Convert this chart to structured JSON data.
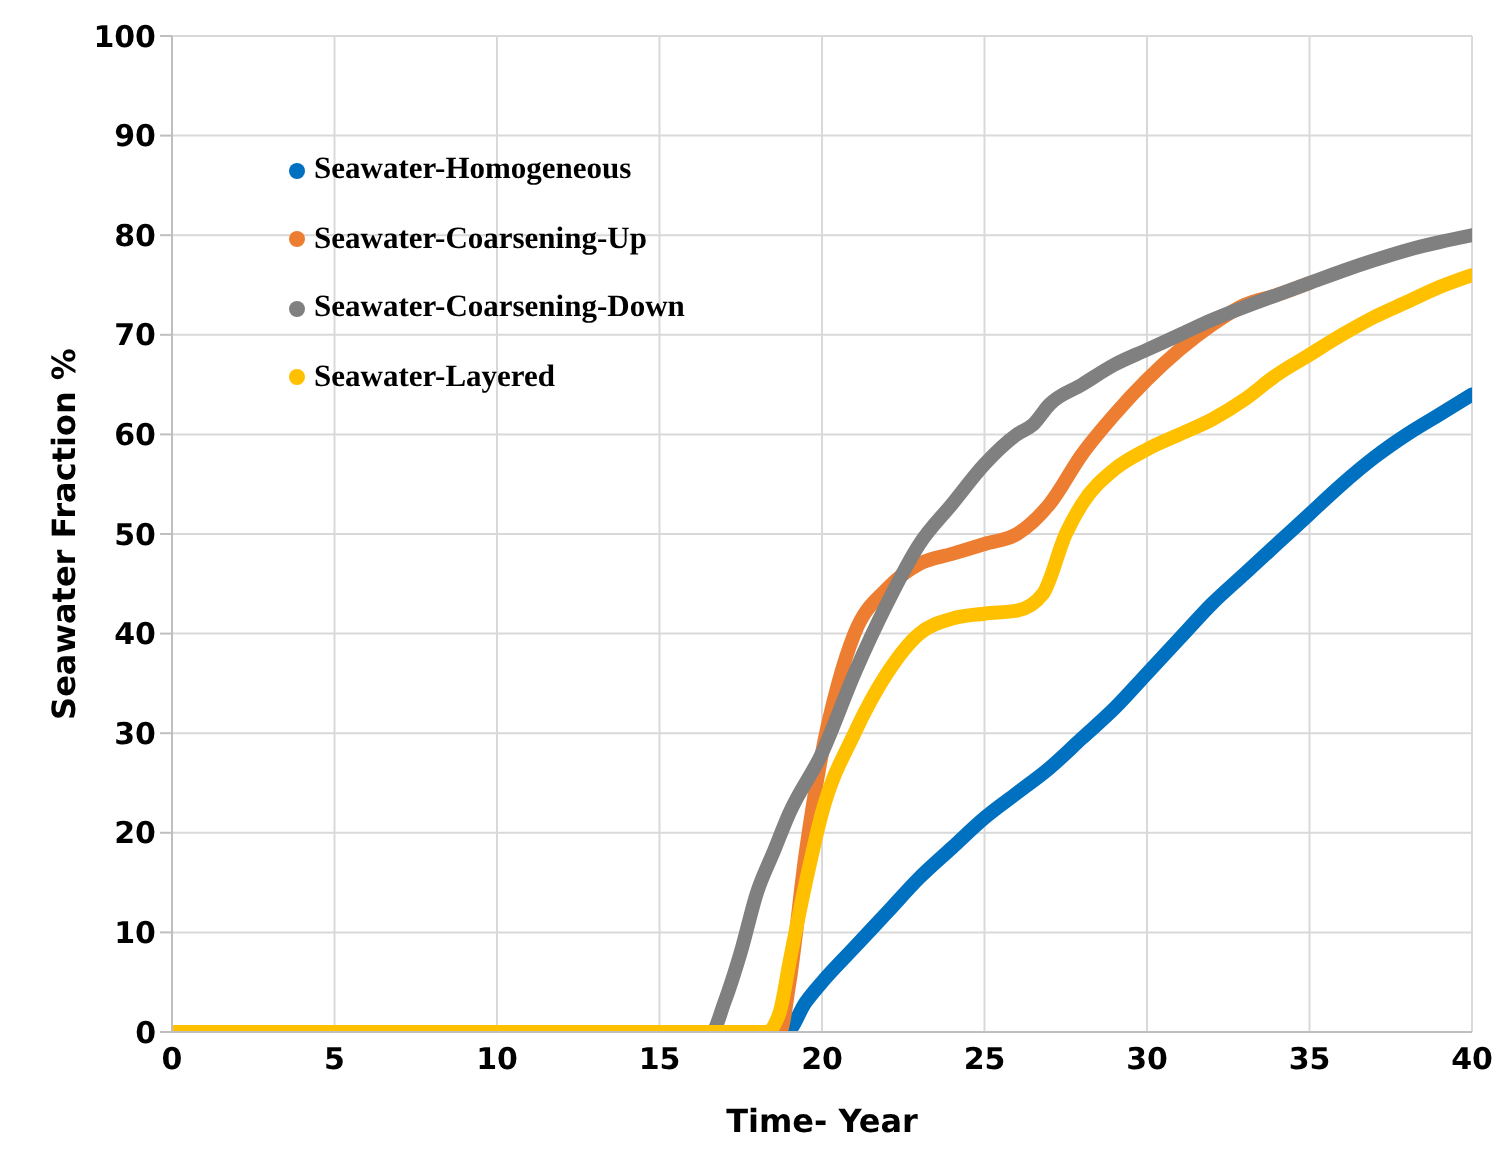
{
  "chart_data": {
    "type": "line",
    "xlabel": "Time- Year",
    "ylabel": "Seawater Fraction %",
    "xlim": [
      0,
      40
    ],
    "xticks": [
      0,
      5,
      10,
      15,
      20,
      25,
      30,
      35,
      40
    ],
    "ylim": [
      0,
      100
    ],
    "yticks": [
      0,
      10,
      20,
      30,
      40,
      50,
      60,
      70,
      80,
      90,
      100
    ],
    "grid": true,
    "legend": "top left",
    "marker": "none",
    "line_style": "solid",
    "series": [
      {
        "name": "Seawater-Homogeneous",
        "color": "#0070c0",
        "x": [
          0,
          18.9,
          19.5,
          20,
          21,
          22,
          23,
          24,
          25,
          26,
          27,
          28,
          29,
          30,
          31,
          32,
          33,
          34,
          35,
          36,
          37,
          38,
          39,
          40
        ],
        "values": [
          0,
          0,
          3,
          5,
          8.5,
          12,
          15.5,
          18.5,
          21.5,
          24,
          26.5,
          29.5,
          32.5,
          36,
          39.5,
          43,
          46,
          49,
          52,
          55,
          57.7,
          60,
          62,
          64
        ]
      },
      {
        "name": "Seawater-Coarsening-Up",
        "color": "#ed7d31",
        "x": [
          0,
          18.7,
          19,
          19.5,
          20,
          20.5,
          21,
          22,
          23,
          24,
          25,
          26,
          27,
          28,
          29,
          30,
          31,
          32,
          33,
          34,
          35
        ],
        "values": [
          0,
          0,
          5,
          18,
          28,
          35,
          40,
          44.5,
          47,
          48,
          49,
          50,
          53,
          58,
          62,
          65.5,
          68.5,
          71,
          73,
          74,
          75.2
        ]
      },
      {
        "name": "Seawater-Coarsening-Down",
        "color": "#808080",
        "x": [
          0,
          16.6,
          17,
          17.5,
          18,
          18.5,
          19,
          20,
          21,
          22,
          23,
          24,
          25,
          26,
          26.5,
          27,
          28,
          29,
          30,
          31,
          32,
          33,
          34,
          35,
          36,
          37,
          38,
          39,
          40
        ],
        "values": [
          0,
          0,
          3,
          8,
          14,
          18,
          22,
          28,
          36,
          43,
          49,
          53,
          57,
          60,
          61,
          63,
          65,
          67,
          68.5,
          70,
          71.5,
          72.8,
          74,
          75.2,
          76.4,
          77.5,
          78.5,
          79.3,
          80
        ]
      },
      {
        "name": "Seawater-Layered",
        "color": "#ffc000",
        "x": [
          0,
          18.3,
          18.7,
          19,
          19.5,
          20,
          21,
          22,
          23,
          24,
          25,
          26,
          26.8,
          27.5,
          28,
          29,
          30,
          31,
          32,
          33,
          34,
          35,
          36,
          37,
          38,
          39,
          40
        ],
        "values": [
          0,
          0,
          2,
          7,
          15,
          22,
          30,
          36,
          40,
          41.5,
          42,
          42.3,
          44,
          50,
          53,
          56.5,
          58.5,
          60,
          61.5,
          63.5,
          66,
          68,
          70,
          71.8,
          73.3,
          74.8,
          76
        ]
      }
    ]
  }
}
